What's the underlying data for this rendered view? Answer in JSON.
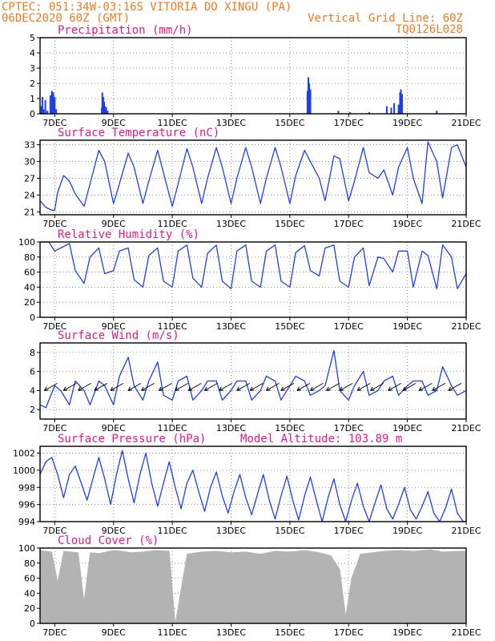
{
  "header": {
    "line1": "CPTEC:   051:34W-03:16S  VITORIA DO XINGU (PA)",
    "line2_left": "06DEC2020 60Z (GMT)",
    "line2_right": "Vertical Grid Line: 60Z",
    "line3_right": "TQ0126L028"
  },
  "colors": {
    "header": "#f07a1e",
    "title": "#e0198c",
    "series": "#1f3fe6",
    "cloud": "#b3b3b3",
    "grid": "#777777"
  },
  "x_axis": {
    "labels": [
      "7DEC",
      "9DEC",
      "11DEC",
      "13DEC",
      "15DEC",
      "17DEC",
      "19DEC",
      "21DEC"
    ]
  },
  "chart_data": [
    {
      "type": "bar",
      "title": "Precipitation (mm/h)",
      "ylim": [
        0,
        5
      ],
      "yticks": [
        0,
        1,
        2,
        3,
        4,
        5
      ],
      "x_days": [
        6.5,
        21
      ],
      "values": [
        [
          6.55,
          0.5
        ],
        [
          6.58,
          1.1
        ],
        [
          6.62,
          0.3
        ],
        [
          6.68,
          0.9
        ],
        [
          6.75,
          0.2
        ],
        [
          6.85,
          1.2
        ],
        [
          6.9,
          1.5
        ],
        [
          6.95,
          1.4
        ],
        [
          7.0,
          1.1
        ],
        [
          7.05,
          0.3
        ],
        [
          8.6,
          0.4
        ],
        [
          8.62,
          1.4
        ],
        [
          8.65,
          1.1
        ],
        [
          8.68,
          0.8
        ],
        [
          8.72,
          0.5
        ],
        [
          8.75,
          0.4
        ],
        [
          8.8,
          0.2
        ],
        [
          15.6,
          1.5
        ],
        [
          15.63,
          2.4
        ],
        [
          15.66,
          2.0
        ],
        [
          15.7,
          1.6
        ],
        [
          16.65,
          0.2
        ],
        [
          17.05,
          0.1
        ],
        [
          17.7,
          0.1
        ],
        [
          18.3,
          0.5
        ],
        [
          18.45,
          0.4
        ],
        [
          18.55,
          0.7
        ],
        [
          18.7,
          0.6
        ],
        [
          18.75,
          1.4
        ],
        [
          18.78,
          1.6
        ],
        [
          18.82,
          1.3
        ],
        [
          20.0,
          0.2
        ]
      ]
    },
    {
      "type": "line",
      "title": "Surface Temperature (nC)",
      "ylim": [
        20.5,
        33.8
      ],
      "yticks": [
        21,
        24,
        27,
        30,
        33
      ],
      "x": [
        6.5,
        6.7,
        6.9,
        7.0,
        7.1,
        7.3,
        7.5,
        7.7,
        8.0,
        8.2,
        8.5,
        8.7,
        9.0,
        9.2,
        9.5,
        9.7,
        10.0,
        10.2,
        10.5,
        10.7,
        11.0,
        11.2,
        11.5,
        11.7,
        12.0,
        12.2,
        12.5,
        12.7,
        13.0,
        13.2,
        13.5,
        13.7,
        14.0,
        14.2,
        14.5,
        14.7,
        15.0,
        15.2,
        15.5,
        15.7,
        16.0,
        16.2,
        16.5,
        16.7,
        17.0,
        17.2,
        17.5,
        17.7,
        18.0,
        18.2,
        18.5,
        18.7,
        19.0,
        19.2,
        19.5,
        19.7,
        20.0,
        20.2,
        20.5,
        20.7,
        21.0
      ],
      "values": [
        23.0,
        21.8,
        21.3,
        21.3,
        24.5,
        27.5,
        26.5,
        24.2,
        22.0,
        26.0,
        32.0,
        30.0,
        22.5,
        26.0,
        31.5,
        29.0,
        22.5,
        26.5,
        32.0,
        28.0,
        22.0,
        26.0,
        32.3,
        29.0,
        22.5,
        27.0,
        32.5,
        29.0,
        22.5,
        27.0,
        32.5,
        29.0,
        22.5,
        27.0,
        32.5,
        29.0,
        22.5,
        27.5,
        32.0,
        30.0,
        27.0,
        23.0,
        31.0,
        30.5,
        23.0,
        26.5,
        32.5,
        28.0,
        27.0,
        28.5,
        24.0,
        29.0,
        32.5,
        27.0,
        22.5,
        33.5,
        30.0,
        23.5,
        32.5,
        33.0,
        29.0
      ]
    },
    {
      "type": "line",
      "title": "Relative Humidity (%)",
      "ylim": [
        0,
        100
      ],
      "yticks": [
        0,
        20,
        40,
        60,
        80,
        100
      ],
      "x": [
        6.5,
        6.8,
        7.0,
        7.2,
        7.5,
        7.7,
        8.0,
        8.2,
        8.5,
        8.7,
        9.0,
        9.2,
        9.5,
        9.7,
        10.0,
        10.2,
        10.5,
        10.7,
        11.0,
        11.2,
        11.5,
        11.7,
        12.0,
        12.2,
        12.5,
        12.7,
        13.0,
        13.2,
        13.5,
        13.7,
        14.0,
        14.2,
        14.5,
        14.7,
        15.0,
        15.2,
        15.5,
        15.7,
        16.0,
        16.2,
        16.5,
        16.7,
        17.0,
        17.2,
        17.5,
        17.7,
        18.0,
        18.2,
        18.5,
        18.7,
        19.0,
        19.2,
        19.5,
        19.7,
        20.0,
        20.2,
        20.5,
        20.7,
        21.0
      ],
      "values": [
        100,
        100,
        88,
        92,
        98,
        62,
        45,
        80,
        92,
        58,
        62,
        88,
        92,
        50,
        40,
        82,
        92,
        48,
        40,
        88,
        96,
        52,
        40,
        85,
        96,
        48,
        38,
        88,
        96,
        48,
        40,
        88,
        96,
        48,
        40,
        86,
        95,
        62,
        55,
        92,
        96,
        48,
        40,
        80,
        92,
        42,
        80,
        78,
        60,
        88,
        88,
        40,
        88,
        82,
        38,
        96,
        80,
        38,
        58
      ]
    },
    {
      "type": "line",
      "title": "Surface Wind (m/s)",
      "ylim": [
        1,
        9
      ],
      "yticks": [
        2,
        4,
        6,
        8
      ],
      "x": [
        6.5,
        6.7,
        7.0,
        7.2,
        7.5,
        7.7,
        8.0,
        8.2,
        8.5,
        8.7,
        9.0,
        9.2,
        9.5,
        9.7,
        10.0,
        10.2,
        10.5,
        10.7,
        11.0,
        11.2,
        11.5,
        11.7,
        12.0,
        12.2,
        12.5,
        12.7,
        13.0,
        13.2,
        13.5,
        13.7,
        14.0,
        14.2,
        14.5,
        14.7,
        15.0,
        15.2,
        15.5,
        15.7,
        16.0,
        16.2,
        16.5,
        16.7,
        17.0,
        17.2,
        17.5,
        17.7,
        18.0,
        18.2,
        18.5,
        18.7,
        19.0,
        19.2,
        19.5,
        19.7,
        20.0,
        20.2,
        20.5,
        20.7,
        21.0
      ],
      "values": [
        2.5,
        2.2,
        4.5,
        4.0,
        2.5,
        5.0,
        4.0,
        2.5,
        5.0,
        4.5,
        2.5,
        5.5,
        7.5,
        4.5,
        3.0,
        5.0,
        7.0,
        3.5,
        3.0,
        5.0,
        5.5,
        3.0,
        4.0,
        5.0,
        5.0,
        3.0,
        4.0,
        5.0,
        5.0,
        3.0,
        4.0,
        5.5,
        5.0,
        3.0,
        4.5,
        5.5,
        5.0,
        3.5,
        4.0,
        4.5,
        8.2,
        4.0,
        3.0,
        4.5,
        6.0,
        3.5,
        4.0,
        5.0,
        5.5,
        3.5,
        4.5,
        5.0,
        5.0,
        3.5,
        4.0,
        6.5,
        4.5,
        3.5,
        4.0
      ],
      "arrows_x": [
        6.65,
        7.3,
        7.8,
        8.35,
        8.9,
        9.5,
        9.95,
        10.55,
        11.1,
        11.55,
        12.1,
        12.6,
        13.2,
        13.65,
        14.2,
        14.7,
        15.25,
        15.7,
        16.25,
        16.7,
        17.3,
        17.75,
        18.35,
        18.85,
        19.4,
        19.85,
        20.4
      ]
    },
    {
      "type": "line",
      "title": "Surface Pressure (hPa)",
      "annotation": "Model Altitude: 103.89  m",
      "ylim": [
        994,
        1002.8
      ],
      "yticks": [
        994,
        996,
        998,
        1000,
        1002
      ],
      "x": [
        6.5,
        6.7,
        6.9,
        7.1,
        7.3,
        7.5,
        7.7,
        7.9,
        8.1,
        8.3,
        8.5,
        8.7,
        8.9,
        9.1,
        9.3,
        9.5,
        9.7,
        9.9,
        10.1,
        10.3,
        10.5,
        10.7,
        10.9,
        11.1,
        11.3,
        11.5,
        11.7,
        11.9,
        12.1,
        12.3,
        12.5,
        12.7,
        12.9,
        13.1,
        13.3,
        13.5,
        13.7,
        13.9,
        14.1,
        14.3,
        14.5,
        14.7,
        14.9,
        15.1,
        15.3,
        15.5,
        15.7,
        15.9,
        16.1,
        16.3,
        16.5,
        16.7,
        16.9,
        17.1,
        17.3,
        17.5,
        17.7,
        17.9,
        18.1,
        18.3,
        18.5,
        18.7,
        18.9,
        19.1,
        19.3,
        19.5,
        19.7,
        19.9,
        20.1,
        20.3,
        20.5,
        20.7,
        20.9,
        21.0
      ],
      "values": [
        999.5,
        1001.0,
        1001.5,
        999.5,
        996.8,
        999.5,
        1000.5,
        998.5,
        996.5,
        999.0,
        1001.5,
        999.0,
        996.0,
        999.5,
        1002.3,
        999.0,
        996.2,
        999.5,
        1002.0,
        998.5,
        995.8,
        998.5,
        1001.0,
        998.0,
        995.5,
        998.5,
        1000.0,
        997.5,
        995.2,
        998.0,
        999.8,
        997.0,
        995.0,
        997.5,
        999.5,
        996.8,
        994.8,
        997.2,
        999.5,
        996.5,
        994.3,
        997.0,
        999.3,
        996.5,
        994.2,
        997.0,
        999.2,
        996.5,
        994.0,
        996.8,
        999.0,
        996.0,
        993.6,
        996.5,
        998.5,
        995.8,
        994.0,
        996.2,
        998.3,
        995.5,
        994.3,
        996.0,
        998.0,
        995.4,
        994.3,
        995.8,
        997.5,
        995.0,
        994.0,
        995.6,
        997.8,
        995.0,
        994.0,
        994.0
      ]
    },
    {
      "type": "area",
      "title": "Cloud Cover (%)",
      "ylim": [
        0,
        100
      ],
      "yticks": [
        0,
        20,
        40,
        60,
        80,
        100
      ],
      "x": [
        6.5,
        6.9,
        7.1,
        7.3,
        7.8,
        8.0,
        8.2,
        8.5,
        9.0,
        9.3,
        9.6,
        10.0,
        10.4,
        10.9,
        11.1,
        11.5,
        12.0,
        12.5,
        13.0,
        13.5,
        14.0,
        14.5,
        15.0,
        15.5,
        16.0,
        16.4,
        16.7,
        16.9,
        17.1,
        17.4,
        17.8,
        18.2,
        18.8,
        19.2,
        19.8,
        20.2,
        20.8,
        21.0
      ],
      "values": [
        97,
        95,
        55,
        96,
        94,
        30,
        94,
        93,
        97,
        96,
        94,
        95,
        97,
        96,
        0,
        92,
        95,
        96,
        94,
        95,
        92,
        96,
        95,
        97,
        94,
        90,
        72,
        10,
        60,
        92,
        94,
        96,
        97,
        96,
        98,
        95,
        96,
        96
      ]
    }
  ]
}
